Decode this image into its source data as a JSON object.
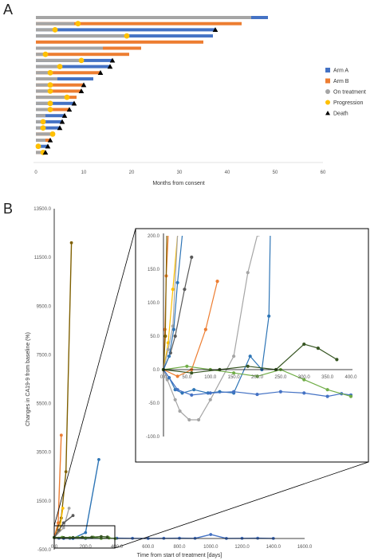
{
  "panels": {
    "a_label": "A",
    "b_label": "B"
  },
  "colors": {
    "arm_a": "#4472c4",
    "arm_b": "#ed7d31",
    "on_treatment": "#a5a5a5",
    "progression": "#ffc000",
    "death": "#000000"
  },
  "chart_data": [
    {
      "type": "bar",
      "subtype": "swimmer",
      "xlabel": "Months from consent",
      "xlim": [
        0,
        60
      ],
      "xticks": [
        "0",
        "10",
        "20",
        "30",
        "40",
        "50",
        "60"
      ],
      "legend": {
        "placement": "right",
        "entries": [
          {
            "label": "Arm A",
            "marker": "square",
            "color": "#4472c4"
          },
          {
            "label": "Arm B",
            "marker": "square",
            "color": "#ed7d31"
          },
          {
            "label": "On treatment",
            "marker": "circle",
            "color": "#a5a5a5"
          },
          {
            "label": "Progression",
            "marker": "circle",
            "color": "#ffc000"
          },
          {
            "label": "Death",
            "marker": "triangle",
            "color": "#000000"
          }
        ]
      },
      "patients": [
        {
          "arm": "A",
          "months": 48.5,
          "treatment_months": 45,
          "progression": null,
          "death": false
        },
        {
          "arm": "B",
          "months": 43,
          "treatment_months": 8,
          "progression": 8.8,
          "death": false
        },
        {
          "arm": "A",
          "months": 37.5,
          "treatment_months": 4,
          "progression": 4,
          "death": true
        },
        {
          "arm": "A",
          "months": 37,
          "treatment_months": 19,
          "progression": 19,
          "death": false
        },
        {
          "arm": "B",
          "months": 35,
          "treatment_months": 0,
          "progression": null,
          "death": false
        },
        {
          "arm": "B",
          "months": 22,
          "treatment_months": 14,
          "progression": null,
          "death": false
        },
        {
          "arm": "B",
          "months": 19.5,
          "treatment_months": 2,
          "progression": 2,
          "death": false
        },
        {
          "arm": "A",
          "months": 16,
          "treatment_months": 9.5,
          "progression": 9.5,
          "death": true
        },
        {
          "arm": "A",
          "months": 15.5,
          "treatment_months": 5,
          "progression": 5,
          "death": true
        },
        {
          "arm": "B",
          "months": 13.5,
          "treatment_months": 3,
          "progression": 3,
          "death": true
        },
        {
          "arm": "A",
          "months": 12,
          "treatment_months": 4.5,
          "progression": null,
          "death": false
        },
        {
          "arm": "B",
          "months": 10,
          "treatment_months": 3,
          "progression": 3,
          "death": true
        },
        {
          "arm": "B",
          "months": 9.5,
          "treatment_months": 3,
          "progression": 3,
          "death": true
        },
        {
          "arm": "B",
          "months": 8.5,
          "treatment_months": 6.5,
          "progression": 6.5,
          "death": false
        },
        {
          "arm": "A",
          "months": 8,
          "treatment_months": 3,
          "progression": 3,
          "death": true
        },
        {
          "arm": "B",
          "months": 7,
          "treatment_months": 3,
          "progression": 3,
          "death": true
        },
        {
          "arm": "A",
          "months": 6,
          "treatment_months": 2,
          "progression": null,
          "death": true
        },
        {
          "arm": "A",
          "months": 5.5,
          "treatment_months": 1.5,
          "progression": 1.5,
          "death": true
        },
        {
          "arm": "A",
          "months": 5,
          "treatment_months": 1.5,
          "progression": 1.5,
          "death": true
        },
        {
          "arm": "B",
          "months": 4,
          "treatment_months": 3.5,
          "progression": 3.5,
          "death": false
        },
        {
          "arm": "B",
          "months": 3,
          "treatment_months": 2,
          "progression": null,
          "death": true
        },
        {
          "arm": "A",
          "months": 2.5,
          "treatment_months": 0.5,
          "progression": 0.5,
          "death": true
        },
        {
          "arm": "B",
          "months": 2,
          "treatment_months": 1.5,
          "progression": 1.5,
          "death": true
        }
      ]
    },
    {
      "type": "line",
      "xlabel": "Time from start of treatment [days]",
      "ylabel": "Changes in CA19-9 from baseline (%)",
      "xlim": [
        0,
        1600
      ],
      "ylim": [
        -500,
        13500
      ],
      "xticks": [
        "0.0",
        "200.0",
        "400.0",
        "600.0",
        "800.0",
        "1000.0",
        "1200.0",
        "1400.0",
        "1600.0"
      ],
      "yticks": [
        "-500.0",
        "1500.0",
        "3500.0",
        "5500.0",
        "7500.0",
        "9500.0",
        "11500.0",
        "13500.0"
      ],
      "series": [
        {
          "color": "#7f6000",
          "x": [
            0,
            45,
            75,
            110
          ],
          "y": [
            0,
            800,
            2700,
            12100
          ]
        },
        {
          "color": "#ed7d31",
          "x": [
            0,
            25,
            45
          ],
          "y": [
            0,
            600,
            4200
          ]
        },
        {
          "color": "#ffc000",
          "x": [
            0,
            35,
            55
          ],
          "y": [
            0,
            300,
            1200
          ]
        },
        {
          "color": "#2e75b6",
          "x": [
            0,
            60,
            120,
            200,
            285
          ],
          "y": [
            0,
            -30,
            -40,
            200,
            3200
          ]
        },
        {
          "color": "#a5a5a5",
          "x": [
            0,
            60,
            95
          ],
          "y": [
            0,
            400,
            1200
          ]
        },
        {
          "color": "#595959",
          "x": [
            0,
            30,
            60,
            120
          ],
          "y": [
            0,
            300,
            600,
            900
          ]
        },
        {
          "color": "#4472c4",
          "x": [
            0,
            30,
            60,
            100,
            200,
            300,
            400,
            500,
            600,
            700,
            800,
            900,
            1000,
            1100,
            1200,
            1300,
            1400
          ],
          "y": [
            0,
            -30,
            -40,
            -35,
            -40,
            -35,
            -30,
            -35,
            -40,
            -35,
            -30,
            -35,
            120,
            -40,
            -35,
            -30,
            -40
          ]
        },
        {
          "color": "#70ad47",
          "x": [
            0,
            50,
            100,
            150,
            200,
            250,
            300,
            350,
            390
          ],
          "y": [
            0,
            5,
            -10,
            0,
            -20,
            10,
            -40,
            -20,
            -45
          ]
        },
        {
          "color": "#375623",
          "x": [
            0,
            60,
            120,
            180,
            240,
            300,
            340
          ],
          "y": [
            0,
            -5,
            0,
            5,
            10,
            35,
            20
          ]
        }
      ]
    },
    {
      "type": "line",
      "role": "zoom-inset",
      "xlim": [
        0,
        400
      ],
      "ylim": [
        -100,
        200
      ],
      "xticks": [
        "0.0",
        "50.0",
        "100.0",
        "150.0",
        "200.0",
        "250.0",
        "300.0",
        "350.0",
        "400.0"
      ],
      "yticks": [
        "-100.0",
        "-50.0",
        "0.0",
        "50.0",
        "100.0",
        "150.0",
        "200.0"
      ],
      "series": [
        {
          "color": "#ed7d31",
          "x": [
            0,
            3,
            6,
            10
          ],
          "y": [
            0,
            60,
            140,
            200
          ]
        },
        {
          "color": "#7f6000",
          "x": [
            0,
            4,
            7
          ],
          "y": [
            0,
            50,
            200
          ]
        },
        {
          "color": "#ffc000",
          "x": [
            0,
            10,
            20,
            30
          ],
          "y": [
            0,
            40,
            120,
            200
          ]
        },
        {
          "color": "#a5a5a5",
          "x": [
            0,
            10,
            20,
            30
          ],
          "y": [
            0,
            30,
            65,
            200
          ]
        },
        {
          "color": "#595959",
          "x": [
            0,
            15,
            25,
            45,
            60
          ],
          "y": [
            0,
            25,
            50,
            120,
            168
          ]
        },
        {
          "color": "#2e75b6",
          "x": [
            0,
            12,
            22,
            30,
            40
          ],
          "y": [
            0,
            20,
            60,
            130,
            200
          ]
        },
        {
          "color": "#ed7d31",
          "x": [
            0,
            30,
            60,
            90,
            115
          ],
          "y": [
            0,
            -10,
            0,
            60,
            132
          ]
        },
        {
          "color": "#a5a5a5",
          "x": [
            0,
            8,
            25,
            35,
            55,
            75,
            100,
            150,
            180,
            200,
            205
          ],
          "y": [
            0,
            -15,
            -45,
            -62,
            -75,
            -75,
            -45,
            20,
            145,
            200,
            200
          ]
        },
        {
          "color": "#2e75b6",
          "x": [
            0,
            12,
            25,
            40,
            65,
            95,
            120,
            150,
            185,
            210,
            225,
            228
          ],
          "y": [
            0,
            -12,
            -30,
            -35,
            -30,
            -35,
            -33,
            -35,
            20,
            0,
            80,
            200
          ]
        },
        {
          "color": "#4472c4",
          "x": [
            0,
            30,
            60,
            100,
            150,
            200,
            250,
            300,
            350,
            380,
            400
          ],
          "y": [
            0,
            -30,
            -38,
            -35,
            -33,
            -37,
            -33,
            -35,
            -40,
            -36,
            -38
          ]
        },
        {
          "color": "#70ad47",
          "x": [
            0,
            50,
            100,
            150,
            200,
            250,
            300,
            350,
            400
          ],
          "y": [
            0,
            5,
            0,
            -5,
            -10,
            0,
            -15,
            -30,
            -40
          ]
        },
        {
          "color": "#375623",
          "x": [
            0,
            60,
            120,
            180,
            240,
            300,
            330,
            370
          ],
          "y": [
            0,
            -5,
            0,
            5,
            0,
            38,
            32,
            15
          ]
        }
      ]
    }
  ]
}
